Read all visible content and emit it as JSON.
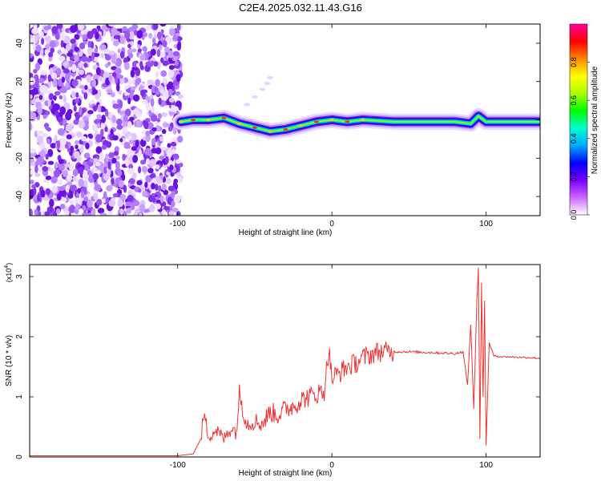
{
  "page": {
    "title": "C2E4.2025.032.11.43.G16"
  },
  "chart_data": [
    {
      "type": "heatmap",
      "xlabel": "Height of straight line (km)",
      "ylabel": "Frequency (Hz)",
      "xlim": [
        -196,
        135
      ],
      "ylim": [
        -50,
        50
      ],
      "xticks": [
        -100,
        0,
        100
      ],
      "xtick_labels": [
        "-100",
        "0",
        "100"
      ],
      "yticks": [
        -40,
        -20,
        0,
        20,
        40
      ],
      "ytick_labels": [
        "-40",
        "-20",
        "0",
        "20",
        "40"
      ],
      "colorbar": {
        "label": "Normalized spectral amplitude",
        "range": [
          0,
          1
        ],
        "ticks": [
          0,
          0.2,
          0.4,
          0.6,
          0.8
        ],
        "tick_labels": [
          "0.0",
          "0.2",
          "0.4",
          "0.6",
          "0.8"
        ],
        "colors": [
          "#ffffff",
          "#cc66ff",
          "#7700ff",
          "#0000ff",
          "#00aaff",
          "#00ffcc",
          "#00ff00",
          "#aaff00",
          "#ffff00",
          "#ff8800",
          "#ff0000",
          "#ff0099"
        ]
      },
      "noise_region_x": [
        -196,
        -98
      ],
      "ridge": {
        "x": [
          -98,
          -90,
          -80,
          -70,
          -60,
          -50,
          -40,
          -30,
          -20,
          -10,
          0,
          10,
          20,
          40,
          60,
          80,
          90,
          95,
          100,
          110,
          120,
          135
        ],
        "y": [
          -1,
          0,
          0,
          1,
          -2,
          -4,
          -6,
          -5,
          -3,
          -1,
          0,
          -1,
          0,
          -1,
          -1,
          -1,
          -2,
          2,
          -1,
          -1,
          -1,
          -1
        ]
      }
    },
    {
      "type": "line",
      "xlabel": "Height of straight line (km)",
      "ylabel": "SNR (10 * v/v)",
      "y_multiplier": "(x10",
      "y_multiplier_exp": "4",
      "y_multiplier_close": ")",
      "xlim": [
        -196,
        135
      ],
      "ylim": [
        0,
        3.2
      ],
      "xticks": [
        -100,
        0,
        100
      ],
      "xtick_labels": [
        "-100",
        "0",
        "100"
      ],
      "yticks": [
        0,
        1,
        2,
        3
      ],
      "ytick_labels": [
        "0",
        "1",
        "2",
        "3"
      ],
      "color": "#ee3333",
      "x": [
        -196,
        -150,
        -100,
        -90,
        -85,
        -83,
        -80,
        -75,
        -70,
        -65,
        -62,
        -60,
        -55,
        -50,
        -45,
        -40,
        -35,
        -30,
        -25,
        -20,
        -15,
        -10,
        -5,
        -2,
        0,
        2,
        5,
        10,
        15,
        20,
        25,
        30,
        35,
        40,
        50,
        60,
        70,
        80,
        85,
        88,
        90,
        92,
        94,
        95,
        96,
        97,
        98,
        99,
        100,
        102,
        105,
        110,
        120,
        130,
        135
      ],
      "y": [
        0.02,
        0.02,
        0.02,
        0.05,
        0.3,
        0.7,
        0.35,
        0.45,
        0.3,
        0.5,
        0.4,
        1.05,
        0.55,
        0.6,
        0.55,
        0.75,
        0.7,
        0.8,
        0.85,
        0.95,
        1.0,
        1.05,
        1.1,
        1.8,
        1.3,
        1.35,
        1.4,
        1.5,
        1.55,
        1.65,
        1.7,
        1.75,
        1.75,
        1.75,
        1.75,
        1.74,
        1.73,
        1.72,
        1.75,
        1.2,
        2.2,
        0.8,
        2.6,
        3.15,
        0.3,
        2.9,
        1.0,
        2.6,
        0.2,
        1.9,
        1.68,
        1.67,
        1.66,
        1.65,
        1.64
      ]
    }
  ]
}
